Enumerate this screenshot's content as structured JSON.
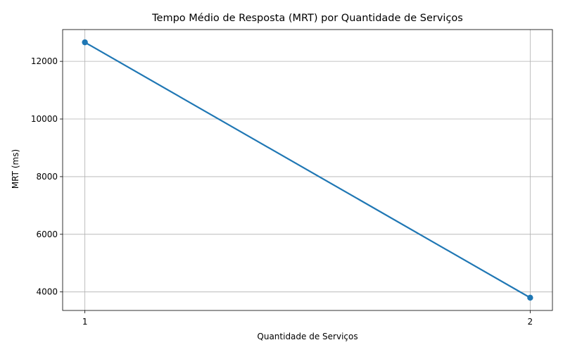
{
  "chart_data": {
    "type": "line",
    "title": "Tempo Médio de Resposta (MRT) por Quantidade de Serviços",
    "xlabel": "Quantidade de Serviços",
    "ylabel": "MRT (ms)",
    "x": [
      1,
      2
    ],
    "x_tick_labels": [
      "1",
      "2"
    ],
    "series": [
      {
        "values": [
          12660,
          3800
        ],
        "color": "#1f77b4",
        "marker": "circle"
      }
    ],
    "y_ticks": [
      4000,
      6000,
      8000,
      10000,
      12000
    ],
    "y_tick_labels": [
      "4000",
      "6000",
      "8000",
      "10000",
      "12000"
    ],
    "xlim": [
      0.95,
      2.05
    ],
    "ylim": [
      3357,
      13103
    ],
    "grid": true,
    "legend": "none"
  }
}
